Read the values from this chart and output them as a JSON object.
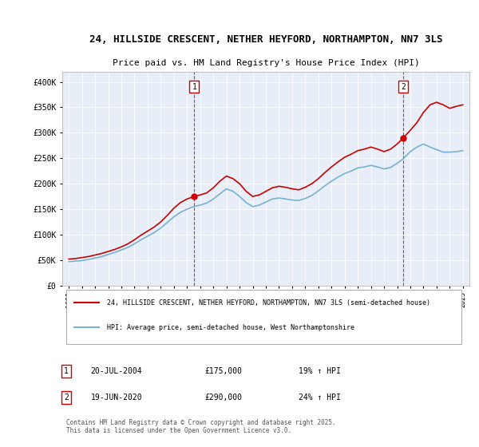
{
  "title_line1": "24, HILLSIDE CRESCENT, NETHER HEYFORD, NORTHAMPTON, NN7 3LS",
  "title_line2": "Price paid vs. HM Land Registry's House Price Index (HPI)",
  "bg_color": "#e8eef8",
  "plot_bg_color": "#e8eef8",
  "red_line_color": "#cc0000",
  "blue_line_color": "#7ab0d4",
  "vline_color": "#cc0000",
  "marker1_x": 2004.55,
  "marker1_y": 175000,
  "marker2_x": 2020.46,
  "marker2_y": 290000,
  "ylim_min": 0,
  "ylim_max": 420000,
  "xlim_min": 1994.5,
  "xlim_max": 2025.5,
  "yticks": [
    0,
    50000,
    100000,
    150000,
    200000,
    250000,
    300000,
    350000,
    400000
  ],
  "ytick_labels": [
    "£0",
    "£50K",
    "£100K",
    "£150K",
    "£200K",
    "£250K",
    "£300K",
    "£350K",
    "£400K"
  ],
  "xtick_years": [
    1995,
    1996,
    1997,
    1998,
    1999,
    2000,
    2001,
    2002,
    2003,
    2004,
    2005,
    2006,
    2007,
    2008,
    2009,
    2010,
    2011,
    2012,
    2013,
    2014,
    2015,
    2016,
    2017,
    2018,
    2019,
    2020,
    2021,
    2022,
    2023,
    2024,
    2025
  ],
  "legend1": "24, HILLSIDE CRESCENT, NETHER HEYFORD, NORTHAMPTON, NN7 3LS (semi-detached house)",
  "legend2": "HPI: Average price, semi-detached house, West Northamptonshire",
  "note1_label": "1",
  "note1_date": "20-JUL-2004",
  "note1_price": "£175,000",
  "note1_hpi": "19% ↑ HPI",
  "note2_label": "2",
  "note2_date": "19-JUN-2020",
  "note2_price": "£290,000",
  "note2_hpi": "24% ↑ HPI",
  "footer": "Contains HM Land Registry data © Crown copyright and database right 2025.\nThis data is licensed under the Open Government Licence v3.0.",
  "red_x": [
    1995.0,
    1995.5,
    1996.0,
    1996.5,
    1997.0,
    1997.5,
    1998.0,
    1998.5,
    1999.0,
    1999.5,
    2000.0,
    2000.5,
    2001.0,
    2001.5,
    2002.0,
    2002.5,
    2003.0,
    2003.5,
    2004.0,
    2004.55,
    2005.0,
    2005.5,
    2006.0,
    2006.5,
    2007.0,
    2007.5,
    2008.0,
    2008.5,
    2009.0,
    2009.5,
    2010.0,
    2010.5,
    2011.0,
    2011.5,
    2012.0,
    2012.5,
    2013.0,
    2013.5,
    2014.0,
    2014.5,
    2015.0,
    2015.5,
    2016.0,
    2016.5,
    2017.0,
    2017.5,
    2018.0,
    2018.5,
    2019.0,
    2019.5,
    2020.0,
    2020.46,
    2021.0,
    2021.5,
    2022.0,
    2022.5,
    2023.0,
    2023.5,
    2024.0,
    2024.5,
    2025.0
  ],
  "red_y": [
    52000,
    53000,
    55000,
    57000,
    60000,
    63000,
    67000,
    71000,
    76000,
    82000,
    90000,
    99000,
    107000,
    115000,
    125000,
    138000,
    152000,
    163000,
    170000,
    175000,
    178000,
    182000,
    192000,
    205000,
    215000,
    210000,
    200000,
    185000,
    175000,
    178000,
    185000,
    192000,
    195000,
    193000,
    190000,
    188000,
    193000,
    200000,
    210000,
    222000,
    233000,
    243000,
    252000,
    258000,
    265000,
    268000,
    272000,
    268000,
    263000,
    268000,
    278000,
    290000,
    305000,
    320000,
    340000,
    355000,
    360000,
    355000,
    348000,
    352000,
    355000
  ],
  "blue_x": [
    1995.0,
    1995.5,
    1996.0,
    1996.5,
    1997.0,
    1997.5,
    1998.0,
    1998.5,
    1999.0,
    1999.5,
    2000.0,
    2000.5,
    2001.0,
    2001.5,
    2002.0,
    2002.5,
    2003.0,
    2003.5,
    2004.0,
    2004.5,
    2005.0,
    2005.5,
    2006.0,
    2006.5,
    2007.0,
    2007.5,
    2008.0,
    2008.5,
    2009.0,
    2009.5,
    2010.0,
    2010.5,
    2011.0,
    2011.5,
    2012.0,
    2012.5,
    2013.0,
    2013.5,
    2014.0,
    2014.5,
    2015.0,
    2015.5,
    2016.0,
    2016.5,
    2017.0,
    2017.5,
    2018.0,
    2018.5,
    2019.0,
    2019.5,
    2020.0,
    2020.5,
    2021.0,
    2021.5,
    2022.0,
    2022.5,
    2023.0,
    2023.5,
    2024.0,
    2024.5,
    2025.0
  ],
  "blue_y": [
    47000,
    48000,
    49000,
    51000,
    54000,
    57000,
    61000,
    65000,
    70000,
    75000,
    82000,
    90000,
    97000,
    104000,
    113000,
    124000,
    135000,
    144000,
    150000,
    155000,
    158000,
    162000,
    170000,
    180000,
    190000,
    185000,
    175000,
    163000,
    155000,
    158000,
    164000,
    170000,
    172000,
    170000,
    168000,
    167000,
    171000,
    177000,
    186000,
    196000,
    205000,
    213000,
    220000,
    225000,
    231000,
    233000,
    236000,
    233000,
    229000,
    232000,
    240000,
    250000,
    263000,
    272000,
    278000,
    272000,
    267000,
    262000,
    262000,
    263000,
    265000
  ]
}
